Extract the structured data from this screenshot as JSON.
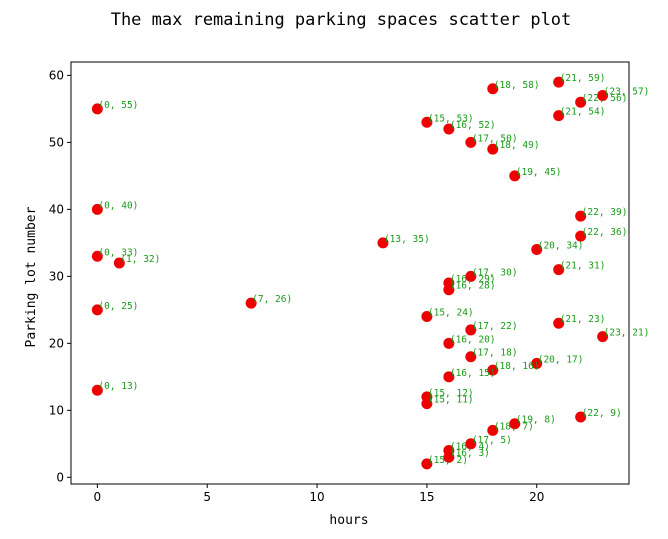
{
  "chart_data": {
    "type": "scatter",
    "title": "The max remaining parking spaces scatter plot",
    "xlabel": "hours",
    "ylabel": "Parking lot number",
    "xlim": [
      -1.2,
      24.2
    ],
    "ylim": [
      -1,
      62
    ],
    "xticks": [
      0,
      5,
      10,
      15,
      20
    ],
    "yticks": [
      0,
      10,
      20,
      30,
      40,
      50,
      60
    ],
    "marker_color": "#ee0000",
    "label_color": "#1a9a1a",
    "grid": false,
    "points": [
      {
        "x": 0,
        "y": 55,
        "label": "(0, 55)"
      },
      {
        "x": 0,
        "y": 40,
        "label": "(0, 40)"
      },
      {
        "x": 0,
        "y": 33,
        "label": "(0, 33)"
      },
      {
        "x": 1,
        "y": 32,
        "label": "(1, 32)"
      },
      {
        "x": 0,
        "y": 25,
        "label": "(0, 25)"
      },
      {
        "x": 0,
        "y": 13,
        "label": "(0, 13)"
      },
      {
        "x": 7,
        "y": 26,
        "label": "(7, 26)"
      },
      {
        "x": 13,
        "y": 35,
        "label": "(13, 35)"
      },
      {
        "x": 15,
        "y": 53,
        "label": "(15, 53)"
      },
      {
        "x": 15,
        "y": 24,
        "label": "(15, 24)"
      },
      {
        "x": 15,
        "y": 12,
        "label": "(15, 12)"
      },
      {
        "x": 15,
        "y": 11,
        "label": "(15, 11)"
      },
      {
        "x": 15,
        "y": 2,
        "label": "(15, 2)"
      },
      {
        "x": 16,
        "y": 52,
        "label": "(16, 52)"
      },
      {
        "x": 16,
        "y": 29,
        "label": "(16, 29)"
      },
      {
        "x": 16,
        "y": 28,
        "label": "(16, 28)"
      },
      {
        "x": 16,
        "y": 20,
        "label": "(16, 20)"
      },
      {
        "x": 16,
        "y": 15,
        "label": "(16, 15)"
      },
      {
        "x": 16,
        "y": 4,
        "label": "(16, 4)"
      },
      {
        "x": 16,
        "y": 3,
        "label": "(16, 3)"
      },
      {
        "x": 17,
        "y": 50,
        "label": "(17, 50)"
      },
      {
        "x": 17,
        "y": 30,
        "label": "(17, 30)"
      },
      {
        "x": 17,
        "y": 22,
        "label": "(17, 22)"
      },
      {
        "x": 17,
        "y": 18,
        "label": "(17, 18)"
      },
      {
        "x": 17,
        "y": 5,
        "label": "(17, 5)"
      },
      {
        "x": 18,
        "y": 58,
        "label": "(18, 58)"
      },
      {
        "x": 18,
        "y": 49,
        "label": "(18, 49)"
      },
      {
        "x": 18,
        "y": 16,
        "label": "(18, 16)"
      },
      {
        "x": 18,
        "y": 7,
        "label": "(18, 7)"
      },
      {
        "x": 19,
        "y": 45,
        "label": "(19, 45)"
      },
      {
        "x": 19,
        "y": 8,
        "label": "(19, 8)"
      },
      {
        "x": 20,
        "y": 34,
        "label": "(20, 34)"
      },
      {
        "x": 20,
        "y": 17,
        "label": "(20, 17)"
      },
      {
        "x": 21,
        "y": 59,
        "label": "(21, 59)"
      },
      {
        "x": 21,
        "y": 54,
        "label": "(21, 54)"
      },
      {
        "x": 21,
        "y": 31,
        "label": "(21, 31)"
      },
      {
        "x": 21,
        "y": 23,
        "label": "(21, 23)"
      },
      {
        "x": 22,
        "y": 56,
        "label": "(22, 56)"
      },
      {
        "x": 22,
        "y": 39,
        "label": "(22, 39)"
      },
      {
        "x": 22,
        "y": 36,
        "label": "(22, 36)"
      },
      {
        "x": 22,
        "y": 9,
        "label": "(22, 9)"
      },
      {
        "x": 23,
        "y": 57,
        "label": "(23, 57)"
      },
      {
        "x": 23,
        "y": 21,
        "label": "(23, 21)"
      }
    ]
  }
}
